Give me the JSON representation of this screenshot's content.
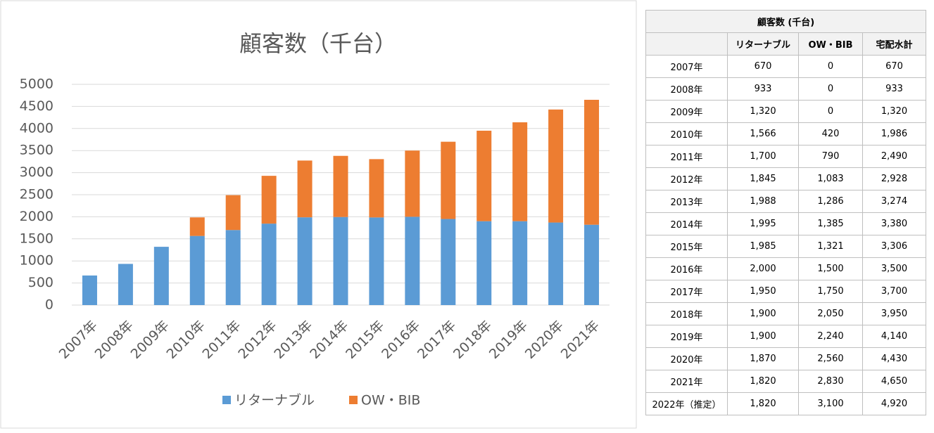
{
  "chart_data": {
    "type": "stacked_bar",
    "title": "顧客数（千台）",
    "categories": [
      "2007年",
      "2008年",
      "2009年",
      "2010年",
      "2011年",
      "2012年",
      "2013年",
      "2014年",
      "2015年",
      "2016年",
      "2017年",
      "2018年",
      "2019年",
      "2020年",
      "2021年"
    ],
    "series": [
      {
        "name": "リターナブル",
        "color": "#5b9bd5",
        "values": [
          670,
          933,
          1320,
          1566,
          1700,
          1845,
          1988,
          1995,
          1985,
          2000,
          1950,
          1900,
          1900,
          1870,
          1820
        ]
      },
      {
        "name": "OW・BIB",
        "color": "#ed7d31",
        "values": [
          0,
          0,
          0,
          420,
          790,
          1083,
          1286,
          1385,
          1321,
          1500,
          1750,
          2050,
          2240,
          2560,
          2830
        ]
      }
    ],
    "ylim": [
      0,
      5000
    ],
    "yticks": [
      0,
      500,
      1000,
      1500,
      2000,
      2500,
      3000,
      3500,
      4000,
      4500,
      5000
    ],
    "grid": true,
    "legend": "bottom"
  },
  "table": {
    "title": "顧客数 (千台)",
    "columns": [
      "リターナブル",
      "OW・BIB",
      "宅配水計"
    ],
    "rows": [
      [
        "2007年",
        "670",
        "0",
        "670"
      ],
      [
        "2008年",
        "933",
        "0",
        "933"
      ],
      [
        "2009年",
        "1,320",
        "0",
        "1,320"
      ],
      [
        "2010年",
        "1,566",
        "420",
        "1,986"
      ],
      [
        "2011年",
        "1,700",
        "790",
        "2,490"
      ],
      [
        "2012年",
        "1,845",
        "1,083",
        "2,928"
      ],
      [
        "2013年",
        "1,988",
        "1,286",
        "3,274"
      ],
      [
        "2014年",
        "1,995",
        "1,385",
        "3,380"
      ],
      [
        "2015年",
        "1,985",
        "1,321",
        "3,306"
      ],
      [
        "2016年",
        "2,000",
        "1,500",
        "3,500"
      ],
      [
        "2017年",
        "1,950",
        "1,750",
        "3,700"
      ],
      [
        "2018年",
        "1,900",
        "2,050",
        "3,950"
      ],
      [
        "2019年",
        "1,900",
        "2,240",
        "4,140"
      ],
      [
        "2020年",
        "1,870",
        "2,560",
        "4,430"
      ],
      [
        "2021年",
        "1,820",
        "2,830",
        "4,650"
      ],
      [
        "2022年（推定）",
        "1,820",
        "3,100",
        "4,920"
      ]
    ]
  }
}
